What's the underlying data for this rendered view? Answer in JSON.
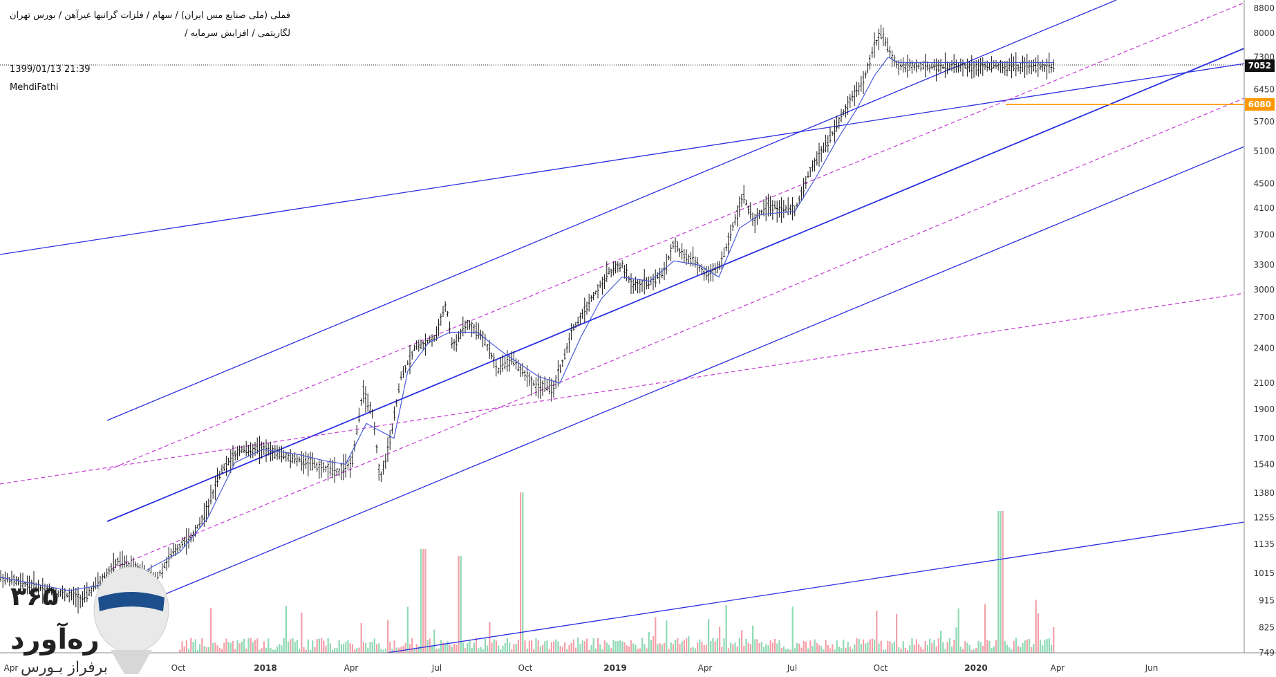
{
  "legend": {
    "line1": "فملی (ملی صنایع مس ایران) / سهام / فلزات گرانبها غیرآهن / بورس تهران",
    "line2": "لگاریتمی / افزایش سرمایه /",
    "datetime": "1399/01/13 21:39",
    "author": "MehdiFathi"
  },
  "price_tags": {
    "current": "7052",
    "level": "6080"
  },
  "colors": {
    "channel": "#2a2ee0",
    "dashed": "#c63ad6",
    "level": "#ff9800",
    "candle": "#111111",
    "ma": "#4a5bd8",
    "vol_up": "#8fd9b4",
    "vol_down": "#f4a0a8"
  },
  "logo": {
    "digits": "۳۶۵",
    "word": "ره‌آورد",
    "tagline": "برفراز بـورس",
    "icon": "balloon-icon"
  },
  "chart_data": {
    "type": "candlestick",
    "scale": "log",
    "x_ticks": [
      "Apr",
      "Oct",
      "2018",
      "Apr",
      "Jul",
      "Oct",
      "2019",
      "Apr",
      "Jul",
      "Oct",
      "2020",
      "Apr",
      "Jun"
    ],
    "y_ticks": [
      "8800",
      "8000",
      "7300",
      "6450",
      "5700",
      "5100",
      "4500",
      "4100",
      "3700",
      "3300",
      "3000",
      "2700",
      "2400",
      "2100",
      "1900",
      "1700",
      "1540",
      "1380",
      "1255",
      "1135",
      "1015",
      "915",
      "825",
      "749"
    ],
    "last_price": 7052,
    "horizontal_level": 6080,
    "price_path": [
      [
        0,
        1000
      ],
      [
        60,
        960
      ],
      [
        120,
        920
      ],
      [
        170,
        1060
      ],
      [
        200,
        1040
      ],
      [
        225,
        990
      ],
      [
        250,
        1100
      ],
      [
        280,
        1180
      ],
      [
        300,
        1300
      ],
      [
        320,
        1500
      ],
      [
        345,
        1620
      ],
      [
        380,
        1640
      ],
      [
        420,
        1580
      ],
      [
        460,
        1530
      ],
      [
        490,
        1500
      ],
      [
        510,
        1560
      ],
      [
        525,
        2050
      ],
      [
        540,
        1850
      ],
      [
        550,
        1450
      ],
      [
        565,
        1700
      ],
      [
        580,
        2150
      ],
      [
        600,
        2400
      ],
      [
        630,
        2500
      ],
      [
        645,
        2850
      ],
      [
        655,
        2400
      ],
      [
        675,
        2650
      ],
      [
        700,
        2500
      ],
      [
        720,
        2200
      ],
      [
        740,
        2300
      ],
      [
        770,
        2100
      ],
      [
        800,
        2050
      ],
      [
        815,
        2300
      ],
      [
        830,
        2600
      ],
      [
        860,
        2950
      ],
      [
        880,
        3200
      ],
      [
        900,
        3300
      ],
      [
        915,
        3050
      ],
      [
        940,
        3100
      ],
      [
        960,
        3200
      ],
      [
        975,
        3600
      ],
      [
        990,
        3400
      ],
      [
        1005,
        3350
      ],
      [
        1020,
        3200
      ],
      [
        1040,
        3250
      ],
      [
        1060,
        3800
      ],
      [
        1075,
        4300
      ],
      [
        1090,
        3900
      ],
      [
        1110,
        4150
      ],
      [
        1150,
        4050
      ],
      [
        1170,
        4700
      ],
      [
        1190,
        5100
      ],
      [
        1210,
        5600
      ],
      [
        1230,
        6200
      ],
      [
        1250,
        6700
      ],
      [
        1265,
        7600
      ],
      [
        1275,
        8000
      ],
      [
        1290,
        7300
      ],
      [
        1300,
        7050
      ]
    ],
    "ma_path": [
      [
        0,
        1000
      ],
      [
        100,
        950
      ],
      [
        190,
        990
      ],
      [
        220,
        1040
      ],
      [
        260,
        1100
      ],
      [
        300,
        1250
      ],
      [
        340,
        1550
      ],
      [
        380,
        1630
      ],
      [
        430,
        1600
      ],
      [
        470,
        1560
      ],
      [
        500,
        1540
      ],
      [
        530,
        1800
      ],
      [
        570,
        1700
      ],
      [
        590,
        2200
      ],
      [
        620,
        2450
      ],
      [
        650,
        2550
      ],
      [
        690,
        2550
      ],
      [
        730,
        2350
      ],
      [
        780,
        2150
      ],
      [
        810,
        2100
      ],
      [
        840,
        2500
      ],
      [
        870,
        2900
      ],
      [
        900,
        3150
      ],
      [
        940,
        3100
      ],
      [
        975,
        3350
      ],
      [
        1010,
        3300
      ],
      [
        1040,
        3150
      ],
      [
        1070,
        3800
      ],
      [
        1100,
        4000
      ],
      [
        1150,
        4050
      ],
      [
        1180,
        4600
      ],
      [
        1210,
        5300
      ],
      [
        1240,
        6000
      ],
      [
        1265,
        6800
      ],
      [
        1285,
        7300
      ],
      [
        1300,
        7150
      ]
    ],
    "volume_profile": "bars"
  }
}
